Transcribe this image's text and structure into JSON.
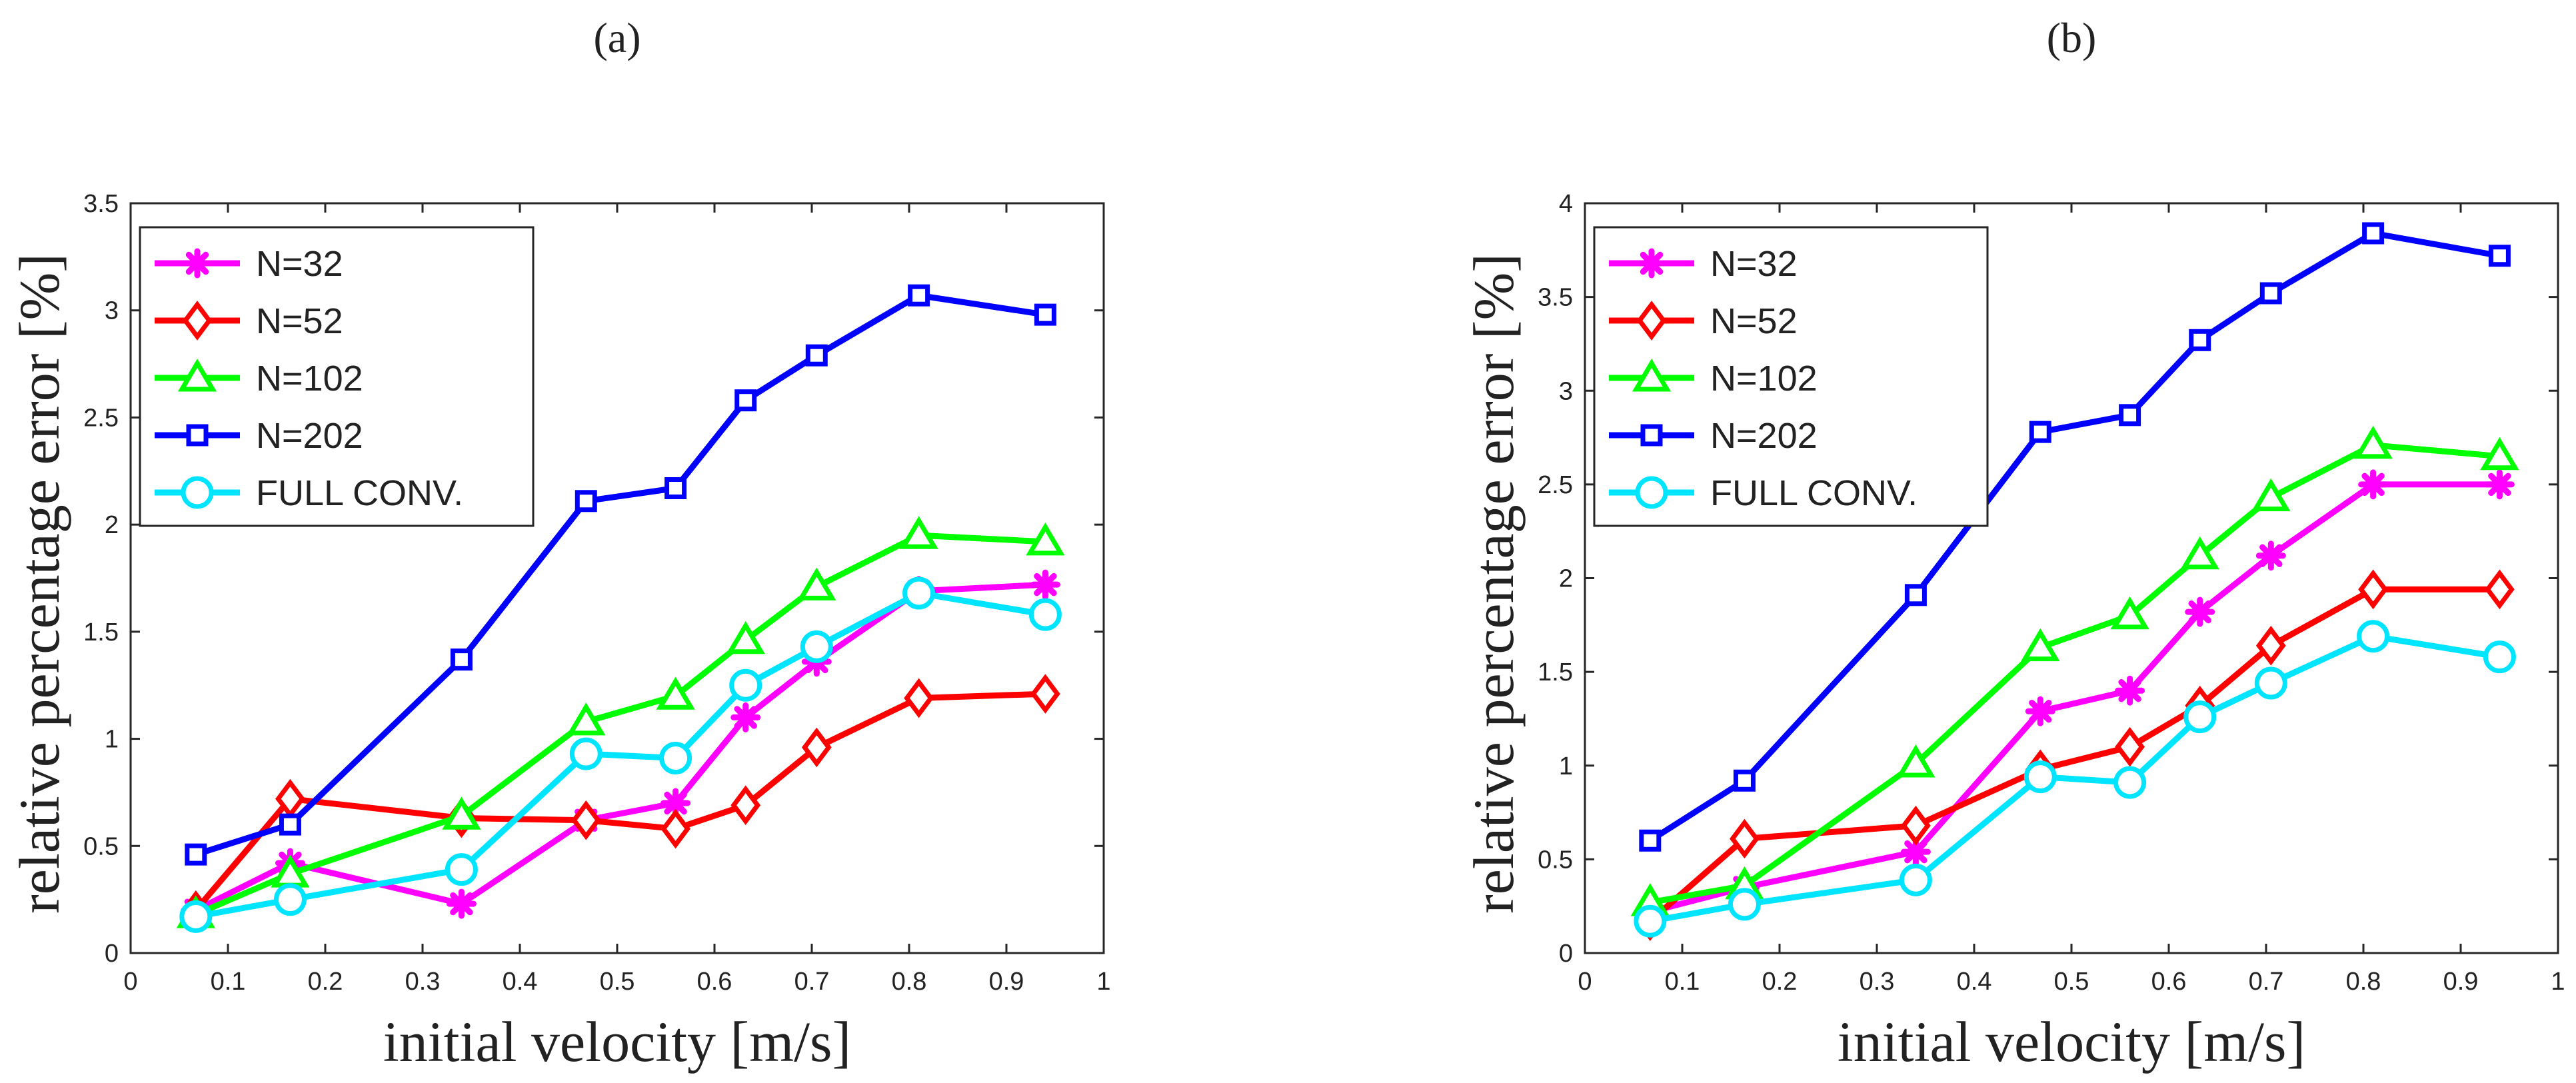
{
  "chart_data": [
    {
      "panel_label": "(a)",
      "type": "line",
      "xlabel": "initial velocity [m/s]",
      "ylabel": "relative percentage error [%]",
      "xlim": [
        0,
        1
      ],
      "ylim": [
        0,
        3.5
      ],
      "xticks": [
        0,
        0.1,
        0.2,
        0.3,
        0.4,
        0.5,
        0.6,
        0.7,
        0.8,
        0.9,
        1
      ],
      "xtick_labels": [
        "0",
        "0.1",
        "0.2",
        "0.3",
        "0.4",
        "0.5",
        "0.6",
        "0.7",
        "0.8",
        "0.9",
        "1"
      ],
      "yticks": [
        0,
        0.5,
        1,
        1.5,
        2,
        2.5,
        3,
        3.5
      ],
      "ytick_labels": [
        "0",
        "0.5",
        "1",
        "1.5",
        "2",
        "2.5",
        "3",
        "3.5"
      ],
      "grid": false,
      "legend_position": "top-left",
      "x": [
        0.067,
        0.164,
        0.34,
        0.468,
        0.56,
        0.632,
        0.705,
        0.81,
        0.94
      ],
      "series": [
        {
          "name": "N=32",
          "color": "#ff00ff",
          "marker": "asterisk",
          "values": [
            0.2,
            0.42,
            0.23,
            0.62,
            0.7,
            1.1,
            1.36,
            1.69,
            1.72
          ]
        },
        {
          "name": "N=52",
          "color": "#ff0000",
          "marker": "diamond",
          "values": [
            0.2,
            0.72,
            0.63,
            0.62,
            0.58,
            0.69,
            0.96,
            1.19,
            1.21
          ]
        },
        {
          "name": "N=102",
          "color": "#00ff00",
          "marker": "triangle",
          "values": [
            0.18,
            0.37,
            0.64,
            1.08,
            1.2,
            1.46,
            1.71,
            1.95,
            1.92
          ]
        },
        {
          "name": "N=202",
          "color": "#0000ff",
          "marker": "square",
          "values": [
            0.46,
            0.6,
            1.37,
            2.11,
            2.17,
            2.58,
            2.79,
            3.07,
            2.98
          ]
        },
        {
          "name": "FULL CONV.",
          "color": "#00e5ff",
          "marker": "circle",
          "values": [
            0.17,
            0.25,
            0.39,
            0.93,
            0.91,
            1.25,
            1.43,
            1.68,
            1.58
          ]
        }
      ]
    },
    {
      "panel_label": "(b)",
      "type": "line",
      "xlabel": "initial velocity [m/s]",
      "ylabel": "relative percentage error [%]",
      "xlim": [
        0,
        1
      ],
      "ylim": [
        0,
        4
      ],
      "xticks": [
        0,
        0.1,
        0.2,
        0.3,
        0.4,
        0.5,
        0.6,
        0.7,
        0.8,
        0.9,
        1
      ],
      "xtick_labels": [
        "0",
        "0.1",
        "0.2",
        "0.3",
        "0.4",
        "0.5",
        "0.6",
        "0.7",
        "0.8",
        "0.9",
        "1"
      ],
      "yticks": [
        0,
        0.5,
        1,
        1.5,
        2,
        2.5,
        3,
        3.5,
        4
      ],
      "ytick_labels": [
        "0",
        "0.5",
        "1",
        "1.5",
        "2",
        "2.5",
        "3",
        "3.5",
        "4"
      ],
      "grid": false,
      "legend_position": "top-left",
      "x": [
        0.067,
        0.164,
        0.34,
        0.468,
        0.56,
        0.632,
        0.705,
        0.81,
        0.94
      ],
      "series": [
        {
          "name": "N=32",
          "color": "#ff00ff",
          "marker": "asterisk",
          "values": [
            0.22,
            0.35,
            0.54,
            1.29,
            1.4,
            1.82,
            2.12,
            2.5,
            2.5
          ]
        },
        {
          "name": "N=52",
          "color": "#ff0000",
          "marker": "diamond",
          "values": [
            0.17,
            0.61,
            0.68,
            0.98,
            1.1,
            1.32,
            1.64,
            1.94,
            1.94
          ]
        },
        {
          "name": "N=102",
          "color": "#00ff00",
          "marker": "triangle",
          "values": [
            0.27,
            0.36,
            1.01,
            1.63,
            1.8,
            2.12,
            2.43,
            2.71,
            2.65
          ]
        },
        {
          "name": "N=202",
          "color": "#0000ff",
          "marker": "square",
          "values": [
            0.6,
            0.92,
            1.91,
            2.78,
            2.87,
            3.27,
            3.52,
            3.84,
            3.72
          ]
        },
        {
          "name": "FULL CONV.",
          "color": "#00e5ff",
          "marker": "circle",
          "values": [
            0.17,
            0.26,
            0.39,
            0.94,
            0.91,
            1.26,
            1.44,
            1.69,
            1.58
          ]
        }
      ]
    }
  ]
}
